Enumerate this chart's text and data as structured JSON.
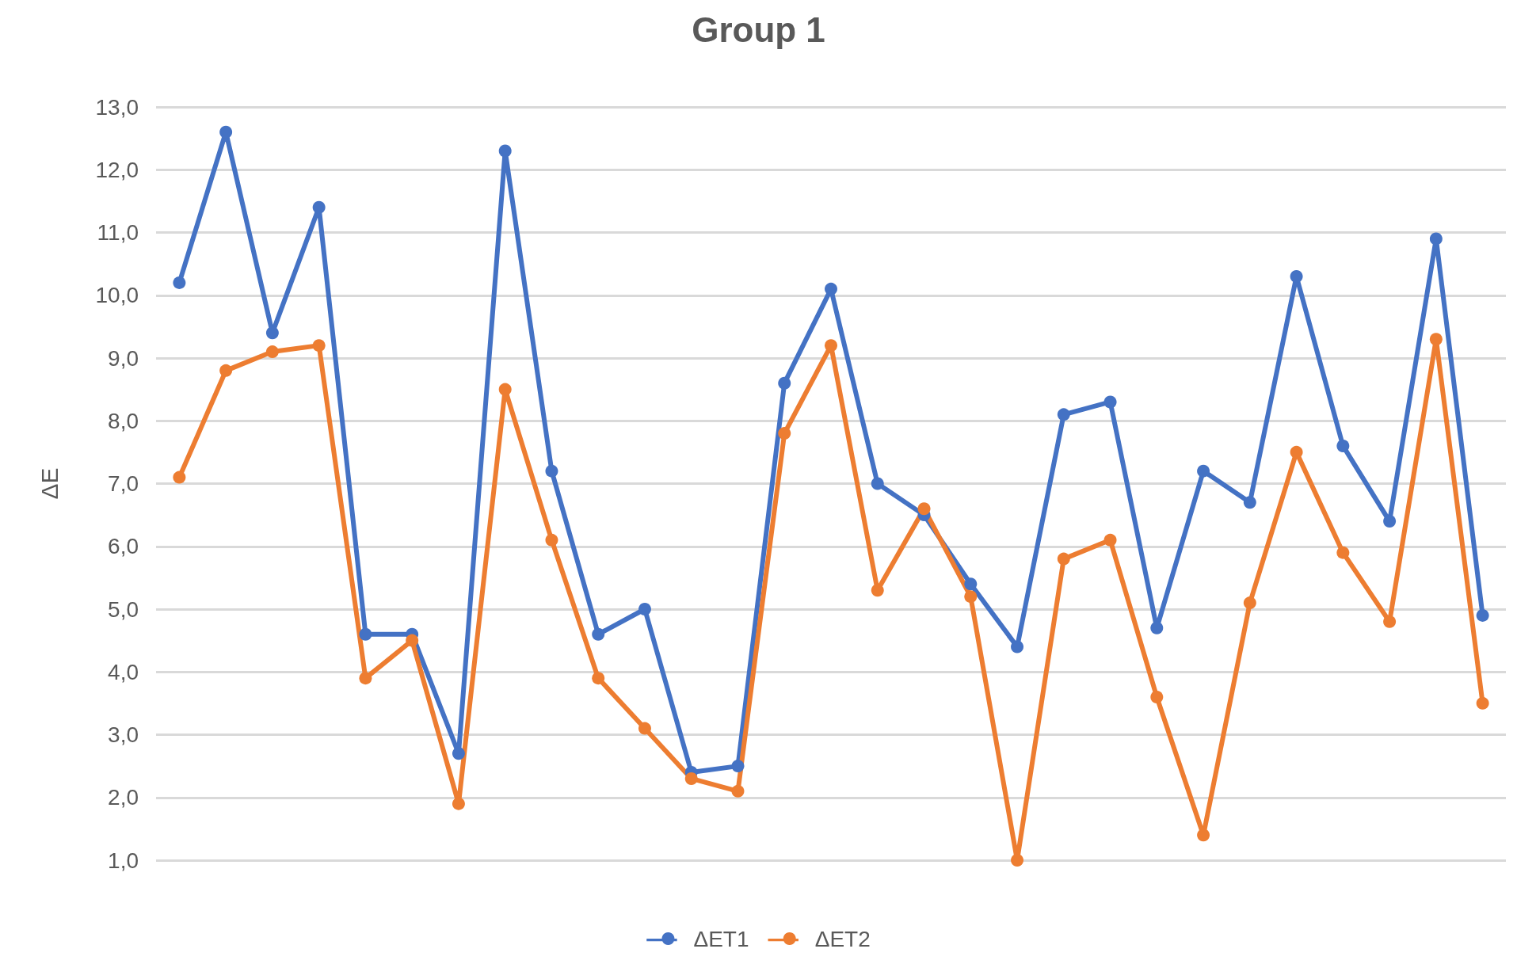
{
  "chart_data": {
    "type": "line",
    "title": "Group 1",
    "ylabel": "ΔE",
    "categories": [
      null,
      null,
      null,
      null,
      null,
      null,
      null,
      null,
      null,
      null,
      null,
      null,
      null,
      null,
      null,
      null,
      null,
      null,
      null,
      null,
      null,
      null,
      null,
      null,
      null,
      null,
      null,
      null,
      null
    ],
    "series": [
      {
        "name": "ΔET1",
        "color": "#4472c4",
        "values": [
          10.2,
          12.6,
          9.4,
          11.4,
          4.6,
          4.6,
          2.7,
          12.3,
          7.2,
          4.6,
          5.0,
          2.4,
          2.5,
          8.6,
          10.1,
          7.0,
          6.5,
          5.4,
          4.4,
          8.1,
          8.3,
          4.7,
          7.2,
          6.7,
          10.3,
          7.6,
          6.4,
          10.9,
          4.9
        ]
      },
      {
        "name": "ΔET2",
        "color": "#ed7d31",
        "values": [
          7.1,
          8.8,
          9.1,
          9.2,
          3.9,
          4.5,
          1.9,
          8.5,
          6.1,
          3.9,
          3.1,
          2.3,
          2.1,
          7.8,
          9.2,
          5.3,
          6.6,
          5.2,
          1.0,
          5.8,
          6.1,
          3.6,
          1.4,
          5.1,
          7.5,
          5.9,
          4.8,
          9.3,
          3.5
        ]
      }
    ],
    "ylim": [
      1,
      13
    ],
    "yticks": [
      {
        "value": 1,
        "label": "1,0"
      },
      {
        "value": 2,
        "label": "2,0"
      },
      {
        "value": 3,
        "label": "3,0"
      },
      {
        "value": 4,
        "label": "4,0"
      },
      {
        "value": 5,
        "label": "5,0"
      },
      {
        "value": 6,
        "label": "6,0"
      },
      {
        "value": 7,
        "label": "7,0"
      },
      {
        "value": 8,
        "label": "8,0"
      },
      {
        "value": 9,
        "label": "9,0"
      },
      {
        "value": 10,
        "label": "10,0"
      },
      {
        "value": 11,
        "label": "11,0"
      },
      {
        "value": 12,
        "label": "12,0"
      },
      {
        "value": 13,
        "label": "13,0"
      }
    ],
    "grid": "y",
    "legend": "bottom",
    "marker": "circle",
    "line_style": "solid"
  }
}
